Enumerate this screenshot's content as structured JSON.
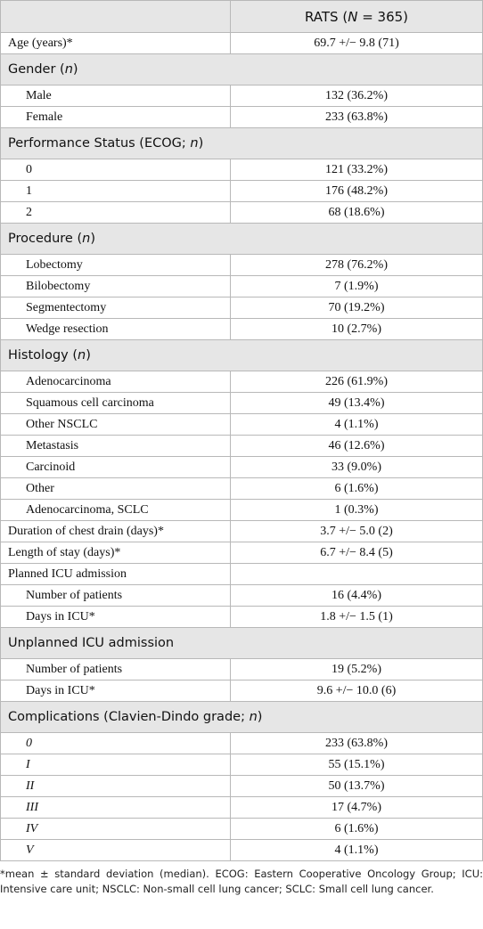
{
  "table": {
    "header": [
      "RATS (",
      "N",
      " = 365)"
    ],
    "rows": [
      {
        "type": "row",
        "label": "Age (years)*",
        "value": "69.7 +/− 9.8 (71)"
      },
      {
        "type": "section",
        "label": [
          "Gender (",
          "n",
          ")"
        ]
      },
      {
        "type": "row",
        "indent": true,
        "label": "Male",
        "value": "132 (36.2%)"
      },
      {
        "type": "row",
        "indent": true,
        "label": "Female",
        "value": "233 (63.8%)"
      },
      {
        "type": "section",
        "label": [
          "Performance Status (ECOG; ",
          "n",
          ")"
        ]
      },
      {
        "type": "row",
        "indent": true,
        "label": "0",
        "value": "121 (33.2%)"
      },
      {
        "type": "row",
        "indent": true,
        "label": "1",
        "value": "176 (48.2%)"
      },
      {
        "type": "row",
        "indent": true,
        "label": "2",
        "value": "68 (18.6%)"
      },
      {
        "type": "section",
        "label": [
          "Procedure (",
          "n",
          ")"
        ]
      },
      {
        "type": "row",
        "indent": true,
        "label": "Lobectomy",
        "value": "278 (76.2%)"
      },
      {
        "type": "row",
        "indent": true,
        "label": "Bilobectomy",
        "value": "7 (1.9%)"
      },
      {
        "type": "row",
        "indent": true,
        "label": "Segmentectomy",
        "value": "70 (19.2%)"
      },
      {
        "type": "row",
        "indent": true,
        "label": "Wedge resection",
        "value": "10 (2.7%)"
      },
      {
        "type": "section",
        "label": [
          "Histology (",
          "n",
          ")"
        ]
      },
      {
        "type": "row",
        "indent": true,
        "label": "Adenocarcinoma",
        "value": "226 (61.9%)"
      },
      {
        "type": "row",
        "indent": true,
        "label": "Squamous cell carcinoma",
        "value": "49 (13.4%)"
      },
      {
        "type": "row",
        "indent": true,
        "label": "Other NSCLC",
        "value": "4 (1.1%)"
      },
      {
        "type": "row",
        "indent": true,
        "label": "Metastasis",
        "value": "46 (12.6%)"
      },
      {
        "type": "row",
        "indent": true,
        "label": "Carcinoid",
        "value": "33 (9.0%)"
      },
      {
        "type": "row",
        "indent": true,
        "label": "Other",
        "value": "6 (1.6%)"
      },
      {
        "type": "row",
        "indent": true,
        "label": "Adenocarcinoma, SCLC",
        "value": "1 (0.3%)"
      },
      {
        "type": "row",
        "label": "Duration of chest drain (days)*",
        "value": "3.7 +/− 5.0 (2)"
      },
      {
        "type": "row",
        "label": "Length of stay (days)*",
        "value": "6.7 +/− 8.4 (5)"
      },
      {
        "type": "row",
        "label": "Planned ICU admission"
      },
      {
        "type": "row",
        "indent": true,
        "label": "Number of patients",
        "value": "16 (4.4%)"
      },
      {
        "type": "row",
        "indent": true,
        "label": "Days in ICU*",
        "value": "1.8 +/− 1.5 (1)"
      },
      {
        "type": "section",
        "label": [
          "Unplanned ICU admission"
        ]
      },
      {
        "type": "row",
        "indent": true,
        "label": "Number of patients",
        "value": "19 (5.2%)"
      },
      {
        "type": "row",
        "indent": true,
        "label": "Days in ICU*",
        "value": "9.6 +/− 10.0 (6)"
      },
      {
        "type": "section",
        "label": [
          "Complications (Clavien-Dindo grade; ",
          "n",
          ")"
        ]
      },
      {
        "type": "row",
        "indent": true,
        "italic": true,
        "label": "0",
        "value": "233 (63.8%)"
      },
      {
        "type": "row",
        "indent": true,
        "italic": true,
        "label": "I",
        "value": "55 (15.1%)"
      },
      {
        "type": "row",
        "indent": true,
        "italic": true,
        "label": "II",
        "value": "50 (13.7%)"
      },
      {
        "type": "row",
        "indent": true,
        "italic": true,
        "label": "III",
        "value": "17 (4.7%)"
      },
      {
        "type": "row",
        "indent": true,
        "italic": true,
        "label": "IV",
        "value": "6 (1.6%)"
      },
      {
        "type": "row",
        "indent": true,
        "italic": true,
        "label": "V",
        "value": "4 (1.1%)"
      }
    ],
    "footnote": "*mean ± standard deviation (median). ECOG: Eastern Cooperative Oncology Group; ICU: Intensive care unit; NSCLC: Non-small cell lung cancer; SCLC: Small cell lung cancer."
  }
}
